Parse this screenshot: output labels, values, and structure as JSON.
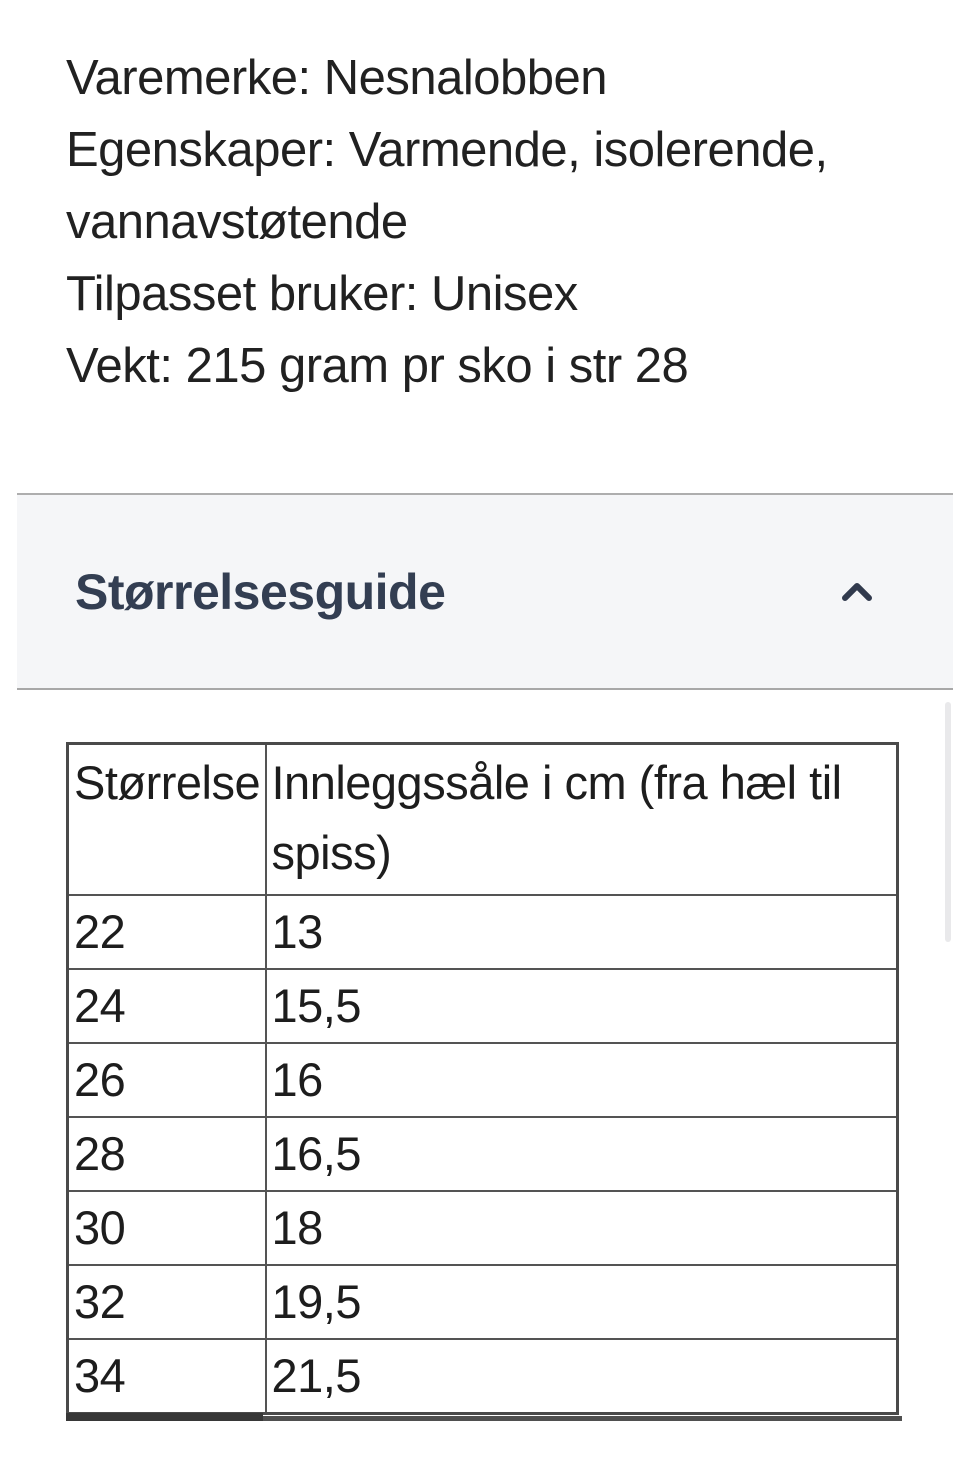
{
  "page": {
    "background_color": "#ffffff"
  },
  "product_details": {
    "lines": [
      "Varemerke: Nesnalobben",
      "Egenskaper: Varmende, isolerende,",
      "vannavstøtende",
      "Tilpasset bruker: Unisex",
      "Vekt: 215 gram pr sko i str 28"
    ]
  },
  "accordion": {
    "title": "Størrelsesguide",
    "chevron_icon": "chevron-up",
    "state": "expanded",
    "title_color": "#333e52",
    "background_color": "#f5f6f8"
  },
  "size_table": {
    "columns": [
      "Størrelse",
      "Innleggssåle i cm (fra hæl til spiss)"
    ],
    "rows": [
      [
        "22",
        "13"
      ],
      [
        "24",
        "15,5"
      ],
      [
        "26",
        "16"
      ],
      [
        "28",
        "16,5"
      ],
      [
        "30",
        "18"
      ],
      [
        "32",
        "19,5"
      ],
      [
        "34",
        "21,5"
      ]
    ],
    "border_color": "#4a4a4a"
  }
}
